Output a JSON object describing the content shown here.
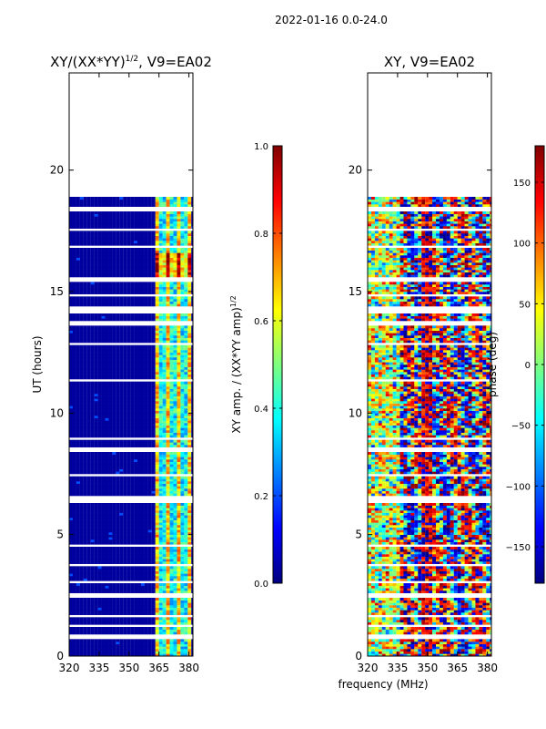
{
  "figure": {
    "suptitle": "2022-01-16 0.0-24.0",
    "shared_xlabel": "frequency (MHz)"
  },
  "colors": {
    "jet": [
      "#00007f",
      "#0000ff",
      "#007fff",
      "#00ffff",
      "#7fff7f",
      "#ffff00",
      "#ff7f00",
      "#ff0000",
      "#7f0000"
    ],
    "empty": "#ffffff"
  },
  "chart_data": [
    {
      "type": "heatmap",
      "panel": "left",
      "title_prefix": "XY/(XX*YY)",
      "title_exp": "1/2",
      "title_suffix": ", V9=EA02",
      "xlabel": "",
      "ylabel": "UT (hours)",
      "xlim": [
        320,
        382
      ],
      "ylim": [
        0,
        24
      ],
      "xticks": [
        320,
        335,
        350,
        365,
        380
      ],
      "yticks": [
        0,
        5,
        10,
        15,
        20
      ],
      "data_extent_hours": [
        0,
        18.9
      ],
      "quantity": "normalized amplitude",
      "colorbar": {
        "label_main": "XY amp. / (XX*YY amp)",
        "label_exp": "1/2",
        "range": [
          0.0,
          1.0
        ],
        "ticks": [
          0.0,
          0.2,
          0.4,
          0.6,
          0.8,
          1.0
        ],
        "tick_labels": [
          "0.0",
          "0.2",
          "0.4",
          "0.6",
          "0.8",
          "1.0"
        ]
      }
    },
    {
      "type": "heatmap",
      "panel": "right",
      "title": "XY, V9=EA02",
      "xlabel": "frequency (MHz)",
      "ylabel": "",
      "xlim": [
        320,
        382
      ],
      "ylim": [
        0,
        24
      ],
      "xticks": [
        320,
        335,
        350,
        365,
        380
      ],
      "yticks": [
        0,
        5,
        10,
        15,
        20
      ],
      "data_extent_hours": [
        0,
        18.9
      ],
      "quantity": "phase",
      "colorbar": {
        "label_main": "phase (deg)",
        "range": [
          -180,
          180
        ],
        "ticks": [
          -150,
          -100,
          -50,
          0,
          50,
          100,
          150
        ],
        "tick_labels": [
          "−150",
          "−100",
          "−50",
          "0",
          "50",
          "100",
          "150"
        ]
      }
    }
  ]
}
